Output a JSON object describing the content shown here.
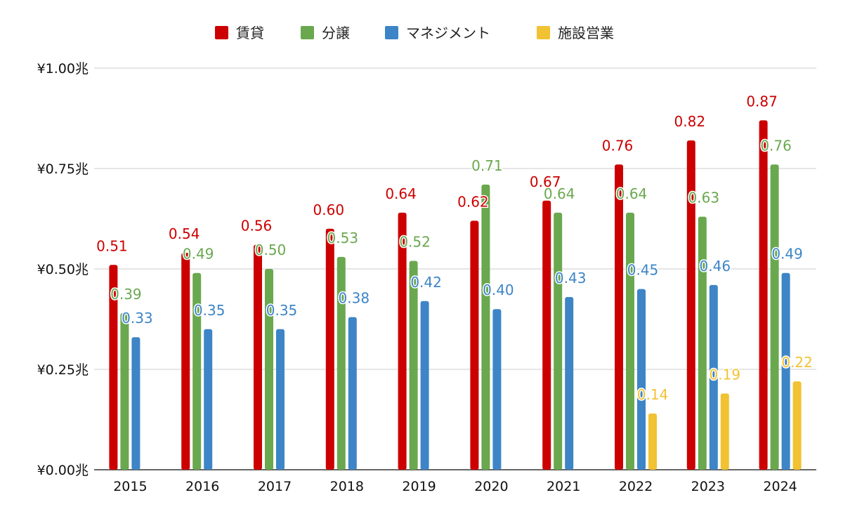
{
  "chart_data": {
    "type": "bar",
    "title": "",
    "xlabel": "",
    "ylabel": "",
    "categories": [
      "2015",
      "2016",
      "2017",
      "2018",
      "2019",
      "2020",
      "2021",
      "2022",
      "2023",
      "2024"
    ],
    "ylim": [
      0,
      1.0
    ],
    "yticks": [
      0,
      0.25,
      0.5,
      0.75,
      1.0
    ],
    "ytick_labels": [
      "¥0.00兆",
      "¥0.25兆",
      "¥0.50兆",
      "¥0.75兆",
      "¥1.00兆"
    ],
    "grid": true,
    "legend_position": "top",
    "series": [
      {
        "name": "賃貸",
        "color": "#cc0000",
        "values": [
          0.51,
          0.54,
          0.56,
          0.6,
          0.64,
          0.62,
          0.67,
          0.76,
          0.82,
          0.87
        ],
        "labels": [
          "0.51",
          "0.54",
          "0.56",
          "0.60",
          "0.64",
          "0.62",
          "0.67",
          "0.76",
          "0.82",
          "0.87"
        ]
      },
      {
        "name": "分譲",
        "color": "#6aa84f",
        "values": [
          0.39,
          0.49,
          0.5,
          0.53,
          0.52,
          0.71,
          0.64,
          0.64,
          0.63,
          0.76
        ],
        "labels": [
          "0.39",
          "0.49",
          "0.50",
          "0.53",
          "0.52",
          "0.71",
          "0.64",
          "0.64",
          "0.63",
          "0.76"
        ]
      },
      {
        "name": "マネジメント",
        "color": "#3d85c6",
        "values": [
          0.33,
          0.35,
          0.35,
          0.38,
          0.42,
          0.4,
          0.43,
          0.45,
          0.46,
          0.49
        ],
        "labels": [
          "0.33",
          "0.35",
          "0.35",
          "0.38",
          "0.42",
          "0.40",
          "0.43",
          "0.45",
          "0.46",
          "0.49"
        ]
      },
      {
        "name": "施設営業",
        "color": "#f1c232",
        "values": [
          null,
          null,
          null,
          null,
          null,
          null,
          null,
          0.14,
          0.19,
          0.22
        ],
        "labels": [
          null,
          null,
          null,
          null,
          null,
          null,
          null,
          "0.14",
          "0.19",
          "0.22"
        ]
      }
    ]
  }
}
